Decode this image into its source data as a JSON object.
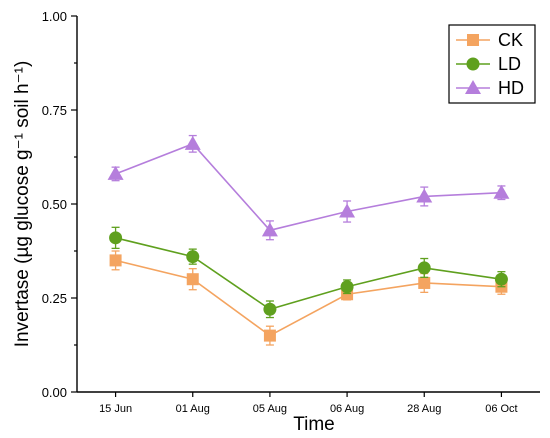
{
  "chart_data": {
    "type": "line",
    "xlabel": "Time",
    "ylabel": "Invertase (µg glucose g⁻¹ soil h⁻¹)",
    "categories": [
      "15 Jun",
      "01 Aug",
      "05 Aug",
      "06 Aug",
      "28 Aug",
      "06 Oct"
    ],
    "ylim": [
      0.0,
      1.0
    ],
    "yticks": [
      "0.00",
      "0.25",
      "0.50",
      "0.75",
      "1.00"
    ],
    "grid": false,
    "legend_position": "top-right",
    "series": [
      {
        "name": "CK",
        "marker": "square",
        "color": "#F4A460",
        "values": [
          0.35,
          0.3,
          0.15,
          0.26,
          0.29,
          0.28
        ],
        "errors": [
          0.025,
          0.028,
          0.025,
          0.015,
          0.025,
          0.02
        ]
      },
      {
        "name": "LD",
        "marker": "circle",
        "color": "#5FA01E",
        "values": [
          0.41,
          0.36,
          0.22,
          0.28,
          0.33,
          0.3
        ],
        "errors": [
          0.028,
          0.02,
          0.022,
          0.018,
          0.025,
          0.02
        ]
      },
      {
        "name": "HD",
        "marker": "triangle",
        "color": "#B57EDC",
        "values": [
          0.58,
          0.66,
          0.43,
          0.48,
          0.52,
          0.53
        ],
        "errors": [
          0.018,
          0.022,
          0.025,
          0.028,
          0.025,
          0.018
        ]
      }
    ]
  }
}
